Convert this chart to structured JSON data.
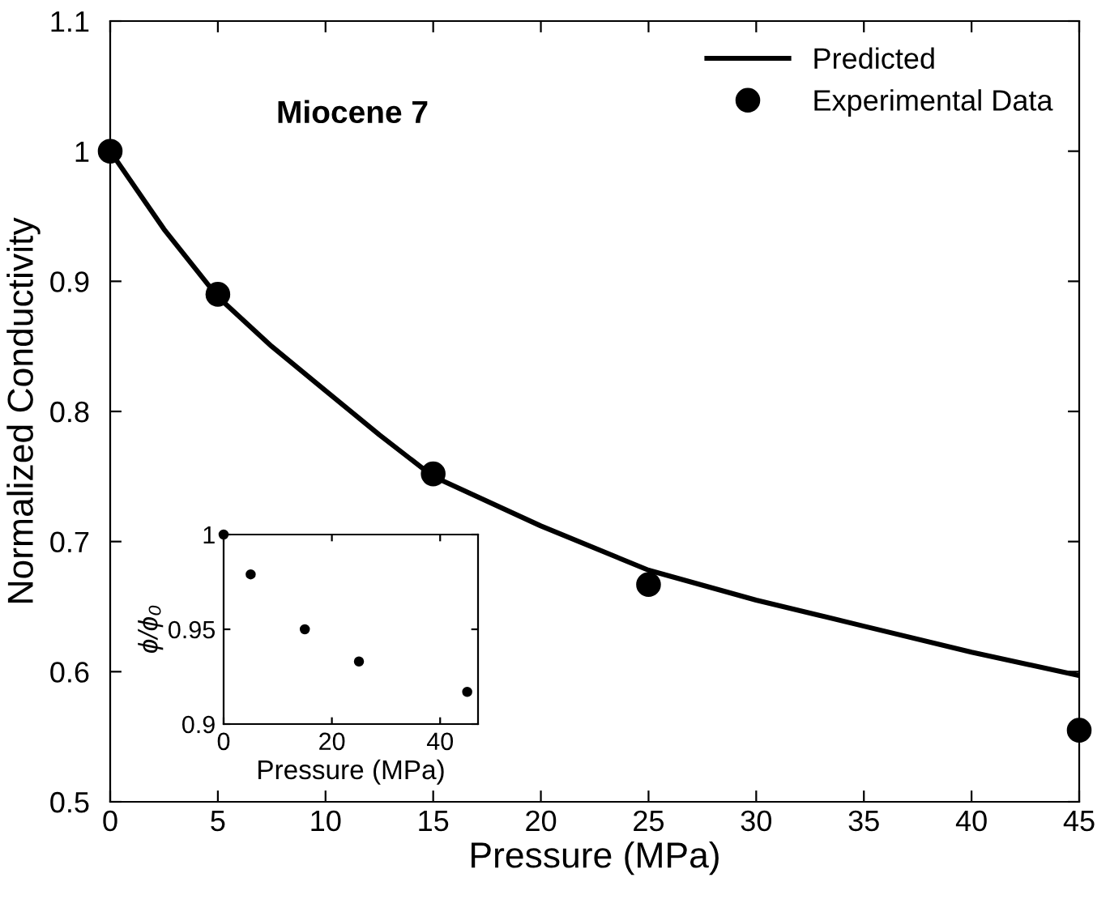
{
  "chart_data": [
    {
      "type": "line",
      "xlabel": "Pressure (MPa)",
      "ylabel": "Normalized Conductivity",
      "annotations": [
        "Miocene 7"
      ],
      "xlim": [
        0,
        45
      ],
      "xticks": [
        0,
        5,
        10,
        15,
        20,
        25,
        30,
        35,
        40,
        45
      ],
      "ylim": [
        0.5,
        1.1
      ],
      "yticks": [
        0.5,
        0.6,
        0.7,
        0.8,
        0.9,
        1,
        1.1
      ],
      "grid": false,
      "legend": "top right",
      "series": [
        {
          "name": "Predicted",
          "type": "line",
          "color": "#000000",
          "marker": "none",
          "line_style": "solid",
          "x": [
            0,
            2.5,
            5,
            7.5,
            10,
            12.5,
            15,
            20,
            25,
            30,
            35,
            40,
            45
          ],
          "values": [
            1,
            0.94,
            0.888,
            0.85,
            0.816,
            0.782,
            0.75,
            0.712,
            0.678,
            0.655,
            0.635,
            0.615,
            0.597
          ]
        },
        {
          "name": "Experimental Data",
          "type": "scatter",
          "color": "#000000",
          "marker": "circle",
          "x": [
            0,
            5,
            15,
            25,
            45
          ],
          "values": [
            1,
            0.89,
            0.752,
            0.667,
            0.555
          ]
        }
      ]
    },
    {
      "type": "scatter",
      "xlabel": "Pressure (MPa)",
      "ylabel": "ϕ/ϕ₀",
      "xlim": [
        0,
        47
      ],
      "xticks": [
        0,
        20,
        40
      ],
      "ylim": [
        0.9,
        1
      ],
      "yticks": [
        0.9,
        0.95,
        1
      ],
      "grid": false,
      "marker": "circle",
      "series": [
        {
          "color": "#000000",
          "x": [
            0,
            5,
            15,
            25,
            45
          ],
          "values": [
            1,
            0.979,
            0.95,
            0.933,
            0.917
          ]
        }
      ]
    }
  ]
}
